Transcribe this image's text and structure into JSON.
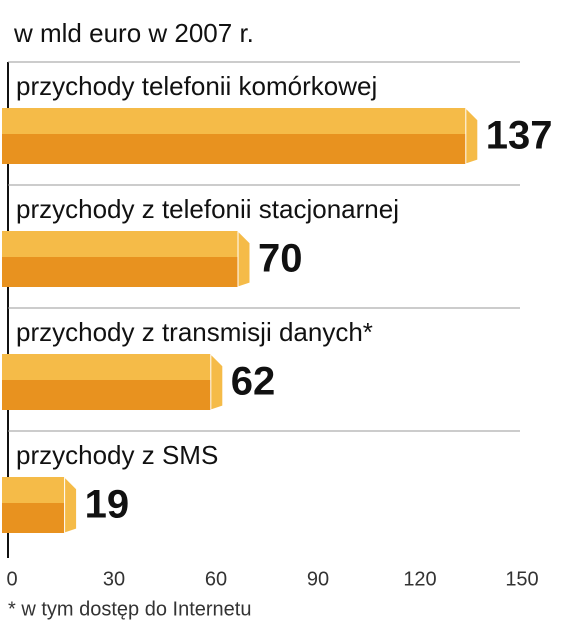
{
  "chart_data": {
    "type": "bar",
    "orientation": "horizontal",
    "subtitle": "w mld euro w 2007 r.",
    "categories": [
      "przychody telefonii komórkowej",
      "przychody z telefonii stacjonarnej",
      "przychody z transmisji danych*",
      "przychody z SMS"
    ],
    "values": [
      137,
      70,
      62,
      19
    ],
    "color": "#e8921f",
    "highlight_color": "#f5bb48",
    "xlim": [
      0,
      150
    ],
    "xticks": [
      0,
      30,
      60,
      90,
      120,
      150
    ],
    "footnote": "* w tym dostęp do Internetu"
  }
}
